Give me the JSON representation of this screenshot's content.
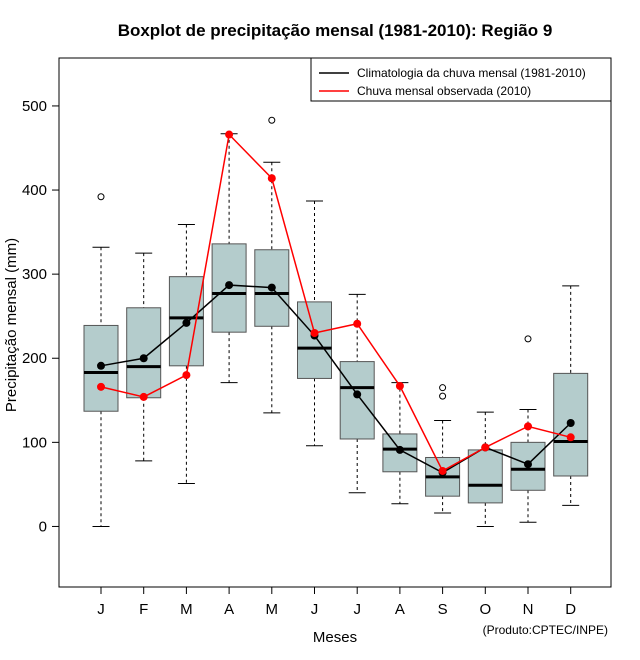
{
  "chart_data": {
    "type": "boxplot",
    "title": "Boxplot de precipitação mensal (1981-2010): Região 9",
    "xlabel": "Meses",
    "ylabel": "Precipitação mensal (mm)",
    "ylim": [
      -72,
      557
    ],
    "yticks": [
      0,
      100,
      200,
      300,
      400,
      500
    ],
    "categories": [
      "J",
      "F",
      "M",
      "A",
      "M",
      "J",
      "J",
      "A",
      "S",
      "O",
      "N",
      "D"
    ],
    "legend_position": "top-right",
    "boxes": [
      {
        "whisker_low": 0,
        "q1": 137,
        "median": 183,
        "q3": 239,
        "whisker_high": 332,
        "outliers": [
          392
        ]
      },
      {
        "whisker_low": 78,
        "q1": 153,
        "median": 190,
        "q3": 260,
        "whisker_high": 325,
        "outliers": []
      },
      {
        "whisker_low": 51,
        "q1": 191,
        "median": 248,
        "q3": 297,
        "whisker_high": 359,
        "outliers": []
      },
      {
        "whisker_low": 171,
        "q1": 231,
        "median": 277,
        "q3": 336,
        "whisker_high": 467,
        "outliers": []
      },
      {
        "whisker_low": 135,
        "q1": 238,
        "median": 277,
        "q3": 329,
        "whisker_high": 433,
        "outliers": [
          483
        ]
      },
      {
        "whisker_low": 96,
        "q1": 176,
        "median": 212,
        "q3": 267,
        "whisker_high": 387,
        "outliers": []
      },
      {
        "whisker_low": 40,
        "q1": 104,
        "median": 165,
        "q3": 196,
        "whisker_high": 276,
        "outliers": []
      },
      {
        "whisker_low": 27,
        "q1": 65,
        "median": 92,
        "q3": 110,
        "whisker_high": 171,
        "outliers": []
      },
      {
        "whisker_low": 16,
        "q1": 36,
        "median": 59,
        "q3": 82,
        "whisker_high": 126,
        "outliers": [
          165,
          155
        ]
      },
      {
        "whisker_low": 0,
        "q1": 28,
        "median": 49,
        "q3": 91,
        "whisker_high": 136,
        "outliers": []
      },
      {
        "whisker_low": 5,
        "q1": 43,
        "median": 68,
        "q3": 100,
        "whisker_high": 139,
        "outliers": [
          223
        ]
      },
      {
        "whisker_low": 25,
        "q1": 60,
        "median": 101,
        "q3": 182,
        "whisker_high": 286,
        "outliers": []
      }
    ],
    "series": [
      {
        "name": "Climatologia da chuva mensal (1981-2010)",
        "color": "#000000",
        "values": [
          191,
          200,
          242,
          287,
          284,
          227,
          157,
          91,
          64,
          94,
          74,
          123
        ]
      },
      {
        "name": "Chuva mensal observada (2010)",
        "color": "#ff0000",
        "values": [
          166,
          154,
          180,
          466,
          414,
          230,
          241,
          167,
          66,
          94,
          119,
          106
        ]
      }
    ]
  },
  "credit": "(Produto:CPTEC/INPE)",
  "colors": {
    "box_fill": "#b4cccc",
    "box_stroke": "#555555"
  }
}
